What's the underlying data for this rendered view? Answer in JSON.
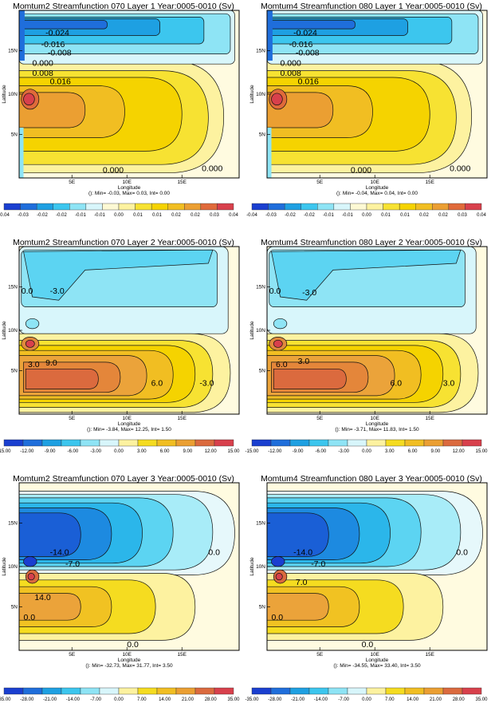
{
  "chart_data": [
    {
      "type": "contour",
      "title": "Momtum2 Streamfunction 070 Layer 1 Year:0005-0010 (Sv)",
      "xlabel": "Longitude",
      "ylabel": "Latitude",
      "x_ticks": [
        "5E",
        "10E",
        "15E"
      ],
      "y_ticks": [
        "5N",
        "10N",
        "15N"
      ],
      "stats": "(): Min= -0.03, Max= 0.03, Int= 0.00",
      "colorbar_ticks": [
        "-0.04",
        "-0.03",
        "-0.02",
        "-0.02",
        "-0.01",
        "-0.01",
        "0.00",
        "0.01",
        "0.01",
        "0.02",
        "0.02",
        "0.03",
        "0.04"
      ],
      "contour_labels": [
        "-0.024",
        "-0.016",
        "-0.008",
        "0.000",
        "0.008",
        "0.016",
        "0.000",
        "0.000"
      ]
    },
    {
      "type": "contour",
      "title": "Momtum4 Streamfunction 080  Layer 1 Year:0005-0010 (Sv)",
      "xlabel": "Longitude",
      "ylabel": "Latitude",
      "x_ticks": [
        "5E",
        "10E",
        "15E"
      ],
      "y_ticks": [
        "5N",
        "10N",
        "15N"
      ],
      "stats": "(): Min= -0.04, Max= 0.04, Int= 0.00",
      "colorbar_ticks": [
        "-0.04",
        "-0.03",
        "-0.02",
        "-0.02",
        "-0.01",
        "-0.01",
        "0.00",
        "0.01",
        "0.01",
        "0.02",
        "0.02",
        "0.03",
        "0.04"
      ],
      "contour_labels": [
        "-0.024",
        "-0.016",
        "-0.008",
        "0.000",
        "0.008",
        "0.016",
        "0.000",
        "0.000"
      ]
    },
    {
      "type": "contour",
      "title": "Momtum2 Streamfunction 070 Layer 2 Year:0005-0010 (Sv)",
      "xlabel": "Longitude",
      "ylabel": "Latitude",
      "x_ticks": [
        "5E",
        "10E",
        "15E"
      ],
      "y_ticks": [
        "5N",
        "10N",
        "15N"
      ],
      "stats": "(): Min= -3.84, Max= 12.25, Int= 1.50",
      "colorbar_ticks": [
        "-15.00",
        "-12.00",
        "-9.00",
        "-6.00",
        "-3.00",
        "0.00",
        "3.00",
        "6.00",
        "9.00",
        "12.00",
        "15.00"
      ],
      "contour_labels": [
        "0.0",
        "-3.0",
        "3.0",
        "9.0",
        "6.0",
        "-3.0"
      ]
    },
    {
      "type": "contour",
      "title": "Momtum4 Streamfunction 080 Layer 2 Year:0005-0010 (Sv)",
      "xlabel": "Longitude",
      "ylabel": "Latitude",
      "x_ticks": [
        "5E",
        "10E",
        "15E"
      ],
      "y_ticks": [
        "5N",
        "10N",
        "15N"
      ],
      "stats": "(): Min= -3.71, Max= 11.83, Int= 1.50",
      "colorbar_ticks": [
        "-15.00",
        "-12.00",
        "-9.00",
        "-6.00",
        "-3.00",
        "0.00",
        "3.00",
        "6.00",
        "9.00",
        "12.00",
        "15.00"
      ],
      "contour_labels": [
        "0.0",
        "-3.0",
        "6.0",
        "3.0",
        "6.0",
        "3.0"
      ]
    },
    {
      "type": "contour",
      "title": "Momtum2 Streamfunction 070 Layer 3 Year:0005-0010 (Sv)",
      "xlabel": "Longitude",
      "ylabel": "Latitude",
      "x_ticks": [
        "5E",
        "10E",
        "15E"
      ],
      "y_ticks": [
        "5N",
        "10N",
        "15N"
      ],
      "stats": "(): Min= -32.73, Max= 31.77, Int= 3.50",
      "colorbar_ticks": [
        "-35.00",
        "-28.00",
        "-21.00",
        "-14.00",
        "-7.00",
        "0.00",
        "7.00",
        "14.00",
        "21.00",
        "28.00",
        "35.00"
      ],
      "contour_labels": [
        "0.0",
        "-14.0",
        "-7.0",
        "14.0",
        "0.0",
        "0.0"
      ]
    },
    {
      "type": "contour",
      "title": "Momtum4 Streamfunction 080 Layer 3 Year:0005-0010 (Sv)",
      "xlabel": "Longitude",
      "ylabel": "Latitude",
      "x_ticks": [
        "5E",
        "10E",
        "15E"
      ],
      "y_ticks": [
        "5N",
        "10N",
        "15N"
      ],
      "stats": "(): Min= -34.55, Max= 33.40, Int= 3.50",
      "colorbar_ticks": [
        "-35.00",
        "-28.00",
        "-21.00",
        "-14.00",
        "-7.00",
        "0.00",
        "7.00",
        "14.00",
        "21.00",
        "28.00",
        "35.00"
      ],
      "contour_labels": [
        "0.0",
        "-14.0",
        "-7.0",
        "7.0",
        "0.0",
        "0.0"
      ]
    }
  ],
  "colors": {
    "negative_deep": "#1a3fd0",
    "negative_mid": "#1ec8ec",
    "negative_light": "#a8ecf8",
    "near_zero_pos": "#fdf6c4",
    "positive_mid": "#f5d800",
    "positive_warm": "#eda32c",
    "positive_deep": "#d8404c"
  }
}
